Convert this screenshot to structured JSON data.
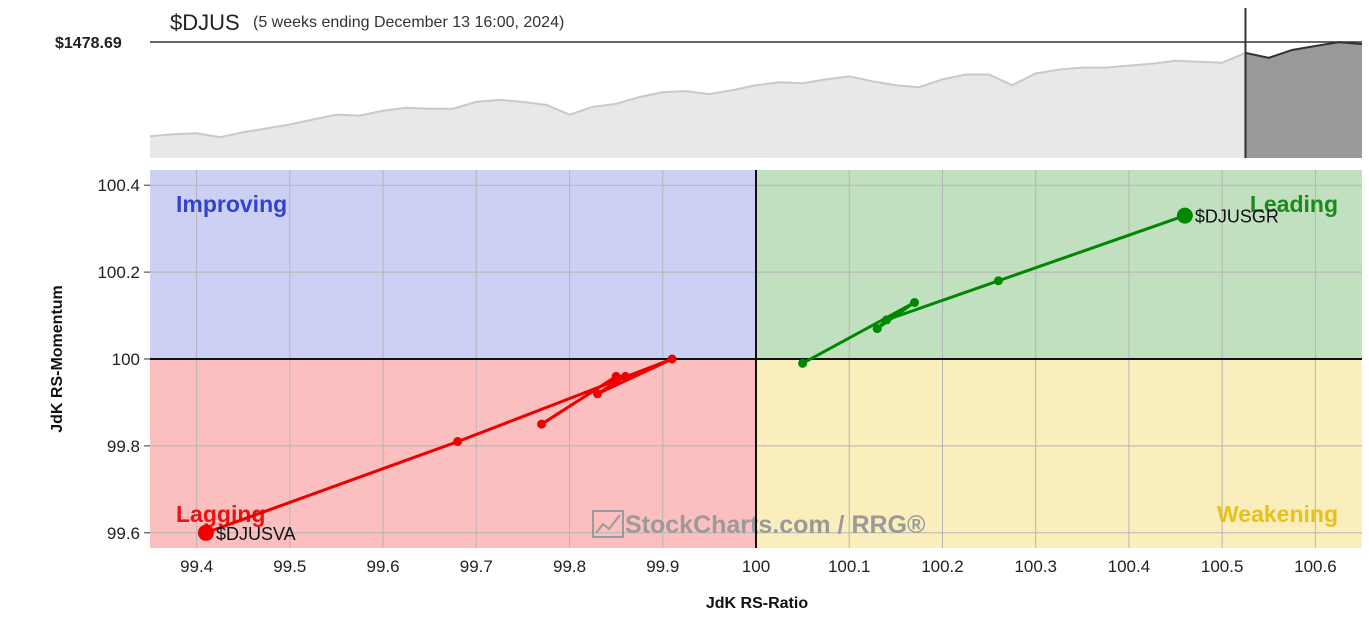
{
  "header": {
    "symbol": "$DJUS",
    "period": "(5 weeks ending December 13 16:00, 2024)",
    "price_label": "$1478.69"
  },
  "price_strip": {
    "values": [
      0.1,
      0.12,
      0.13,
      0.09,
      0.14,
      0.18,
      0.22,
      0.27,
      0.32,
      0.31,
      0.36,
      0.39,
      0.38,
      0.38,
      0.45,
      0.47,
      0.45,
      0.42,
      0.32,
      0.4,
      0.43,
      0.5,
      0.55,
      0.56,
      0.53,
      0.57,
      0.62,
      0.65,
      0.64,
      0.68,
      0.71,
      0.66,
      0.62,
      0.6,
      0.68,
      0.73,
      0.73,
      0.62,
      0.74,
      0.78,
      0.8,
      0.8,
      0.82,
      0.84,
      0.87,
      0.86,
      0.85,
      0.95,
      0.9,
      0.98,
      1.02,
      1.06,
      1.04
    ],
    "fill_color": "#e8e8e8",
    "line_color": "#c9c9c9",
    "highlight_fill": "#999999",
    "highlight_line": "#333333"
  },
  "chart_data": {
    "type": "scatter",
    "xlabel": "JdK RS-Ratio",
    "ylabel": "JdK RS-Momentum",
    "xlim": [
      99.35,
      100.65
    ],
    "ylim": [
      99.565,
      100.435
    ],
    "xticks": [
      "99.4",
      "99.5",
      "99.6",
      "99.7",
      "99.8",
      "99.9",
      "100",
      "100.1",
      "100.2",
      "100.3",
      "100.4",
      "100.5",
      "100.6"
    ],
    "xtick_values": [
      99.4,
      99.5,
      99.6,
      99.7,
      99.8,
      99.9,
      100,
      100.1,
      100.2,
      100.3,
      100.4,
      100.5,
      100.6
    ],
    "yticks": [
      "99.6",
      "99.8",
      "100",
      "100.2",
      "100.4"
    ],
    "ytick_values": [
      99.6,
      99.8,
      100,
      100.2,
      100.4
    ],
    "grid": true,
    "center": [
      100,
      100
    ],
    "quadrants": [
      {
        "name": "Improving",
        "color": "#cbd0f4",
        "label_color": "#3344cc",
        "position": "top-left"
      },
      {
        "name": "Leading",
        "color": "#c1e0c0",
        "label_color": "#1a8a1a",
        "position": "top-right"
      },
      {
        "name": "Lagging",
        "color": "#fcbfbf",
        "label_color": "#ee1111",
        "position": "bottom-left"
      },
      {
        "name": "Weakening",
        "color": "#f9eebc",
        "label_color": "#e8c21a",
        "position": "bottom-right"
      }
    ],
    "series": [
      {
        "name": "$DJUSGR",
        "color": "#008800",
        "points": [
          [
            100.05,
            99.99
          ],
          [
            100.17,
            100.13
          ],
          [
            100.13,
            100.07
          ],
          [
            100.14,
            100.09
          ],
          [
            100.26,
            100.18
          ],
          [
            100.46,
            100.33
          ]
        ]
      },
      {
        "name": "$DJUSVA",
        "color": "#ee0000",
        "points": [
          [
            99.77,
            99.85
          ],
          [
            99.85,
            99.96
          ],
          [
            99.86,
            99.96
          ],
          [
            99.83,
            99.92
          ],
          [
            99.91,
            100.0
          ],
          [
            99.68,
            99.81
          ],
          [
            99.41,
            99.6
          ]
        ]
      }
    ],
    "watermark": "StockCharts.com / RRG®"
  }
}
